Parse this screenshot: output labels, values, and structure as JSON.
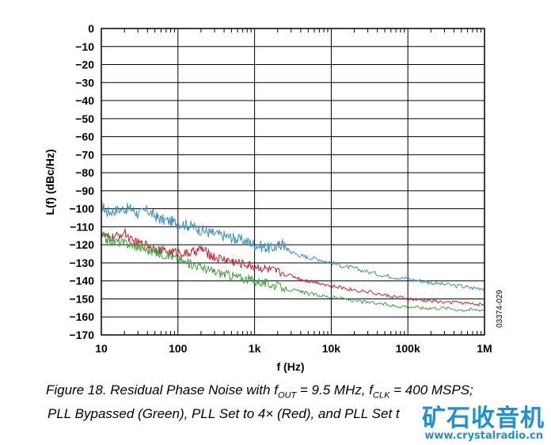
{
  "chart_data": {
    "type": "line",
    "xscale": "log",
    "xlim": [
      10,
      1000000
    ],
    "ylim": [
      -170,
      0
    ],
    "xlabel": "f (Hz)",
    "ylabel": "L(f) (dBc/Hz)",
    "x_tick_labels": [
      "10",
      "100",
      "1k",
      "10k",
      "100k",
      "1M"
    ],
    "x_ticks": [
      10,
      100,
      1000,
      10000,
      100000,
      1000000
    ],
    "y_ticks": [
      0,
      -10,
      -20,
      -30,
      -40,
      -50,
      -60,
      -70,
      -80,
      -90,
      -100,
      -110,
      -120,
      -130,
      -140,
      -150,
      -160,
      -170
    ],
    "y_tick_labels": [
      "0",
      "−10",
      "−20",
      "−30",
      "−40",
      "−50",
      "−60",
      "−70",
      "−80",
      "−90",
      "−100",
      "−110",
      "−120",
      "−130",
      "−140",
      "−150",
      "−160",
      "−170"
    ],
    "grid": true,
    "series": [
      {
        "color": "#3b8fc2",
        "x": [
          10,
          12,
          15,
          20,
          25,
          30,
          40,
          50,
          60,
          80,
          100,
          130,
          160,
          200,
          250,
          300,
          400,
          500,
          600,
          800,
          1000,
          1300,
          1600,
          2000,
          2300,
          2600,
          3000,
          4000,
          5000,
          7000,
          10000,
          15000,
          20000,
          30000,
          50000,
          70000,
          100000,
          150000,
          200000,
          300000,
          500000,
          700000,
          1000000
        ],
        "y": [
          -98,
          -102,
          -101,
          -100,
          -100,
          -103,
          -101,
          -104,
          -106,
          -107,
          -108,
          -109,
          -110,
          -112,
          -113,
          -114,
          -115,
          -116,
          -117,
          -118,
          -120,
          -121,
          -122,
          -121,
          -119,
          -122,
          -124,
          -126,
          -127,
          -128,
          -130,
          -132,
          -133,
          -135,
          -137,
          -138,
          -139,
          -140,
          -141,
          -142,
          -143,
          -144,
          -144
        ]
      },
      {
        "color": "#c8202a",
        "x": [
          10,
          12,
          15,
          20,
          25,
          30,
          40,
          50,
          60,
          80,
          100,
          130,
          160,
          200,
          250,
          300,
          400,
          500,
          600,
          800,
          1000,
          1300,
          1600,
          2000,
          3000,
          4000,
          5000,
          7000,
          10000,
          15000,
          20000,
          30000,
          50000,
          70000,
          100000,
          150000,
          200000,
          300000,
          500000,
          700000,
          1000000
        ],
        "y": [
          -114,
          -116,
          -116,
          -113,
          -118,
          -119,
          -120,
          -122,
          -123,
          -124,
          -124,
          -125,
          -124,
          -122,
          -125,
          -127,
          -128,
          -129,
          -130,
          -131,
          -132,
          -133,
          -134,
          -135,
          -137,
          -139,
          -140,
          -141,
          -143,
          -144,
          -145,
          -146,
          -148,
          -149,
          -150,
          -151,
          -151,
          -152,
          -152,
          -153,
          -153
        ]
      },
      {
        "color": "#3aa53a",
        "x": [
          10,
          12,
          15,
          20,
          25,
          30,
          40,
          50,
          60,
          80,
          100,
          130,
          160,
          200,
          250,
          300,
          400,
          500,
          600,
          800,
          1000,
          1300,
          1600,
          2000,
          3000,
          4000,
          5000,
          7000,
          10000,
          15000,
          20000,
          30000,
          50000,
          70000,
          100000,
          150000,
          200000,
          300000,
          500000,
          700000,
          1000000
        ],
        "y": [
          -115,
          -117,
          -118,
          -119,
          -120,
          -121,
          -123,
          -124,
          -125,
          -126,
          -128,
          -130,
          -131,
          -132,
          -134,
          -135,
          -136,
          -137,
          -138,
          -139,
          -140,
          -141,
          -142,
          -143,
          -145,
          -146,
          -147,
          -148,
          -149,
          -150,
          -151,
          -152,
          -153,
          -154,
          -154,
          -155,
          -155,
          -155,
          -156,
          -156,
          -156
        ]
      }
    ]
  },
  "doc_id": "03374-029",
  "caption": {
    "line1": {
      "p1": "Figure 18. Residual Phase Noise with f",
      "sub1": "OUT",
      "p2": " = 9.5 MHz, f",
      "sub2": "CLK",
      "p3": " = 400 MSPS;"
    },
    "line2": "PLL Bypassed (Green), PLL Set to 4× (Red), and PLL Set t"
  },
  "watermark": {
    "cn": "矿石收音机",
    "url": "www.crystalradio.cn"
  }
}
